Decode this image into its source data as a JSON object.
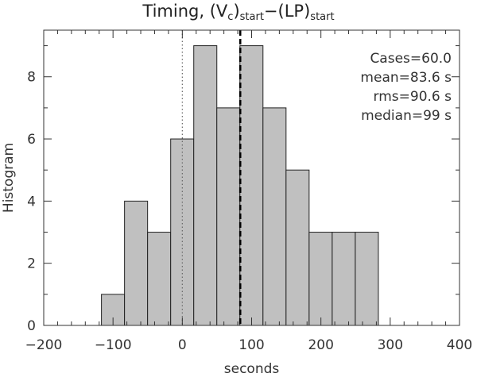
{
  "chart_data": {
    "type": "bar",
    "title_main": "Timing,",
    "title_vc": "V",
    "title_vc_sub": "c",
    "title_start_sub": "start",
    "title_lp": "LP",
    "xlabel": "seconds",
    "ylabel": "Histogram",
    "xlim": [
      -200,
      400
    ],
    "ylim": [
      0,
      9.5
    ],
    "xticks": [
      "-200",
      "-100",
      "0",
      "100",
      "200",
      "300",
      "400"
    ],
    "yticks": [
      "0",
      "2",
      "4",
      "6",
      "8"
    ],
    "bin_width": 33.3,
    "bins": [
      {
        "x0": -116.7,
        "value": 1
      },
      {
        "x0": -83.4,
        "value": 4
      },
      {
        "x0": -50.1,
        "value": 3
      },
      {
        "x0": -16.8,
        "value": 6
      },
      {
        "x0": 16.5,
        "value": 9
      },
      {
        "x0": 49.8,
        "value": 7
      },
      {
        "x0": 83.1,
        "value": 9
      },
      {
        "x0": 116.4,
        "value": 7
      },
      {
        "x0": 149.7,
        "value": 5
      },
      {
        "x0": 183.0,
        "value": 3
      },
      {
        "x0": 216.3,
        "value": 3
      },
      {
        "x0": 249.6,
        "value": 3
      }
    ],
    "zero_line_x": 0,
    "mean_line_x": 83.6,
    "bar_color": "#c0c0c0",
    "stats": {
      "cases": "Cases=60.0",
      "mean": "mean=83.6 s",
      "rms": "rms=90.6 s",
      "median": "median=99 s"
    }
  }
}
